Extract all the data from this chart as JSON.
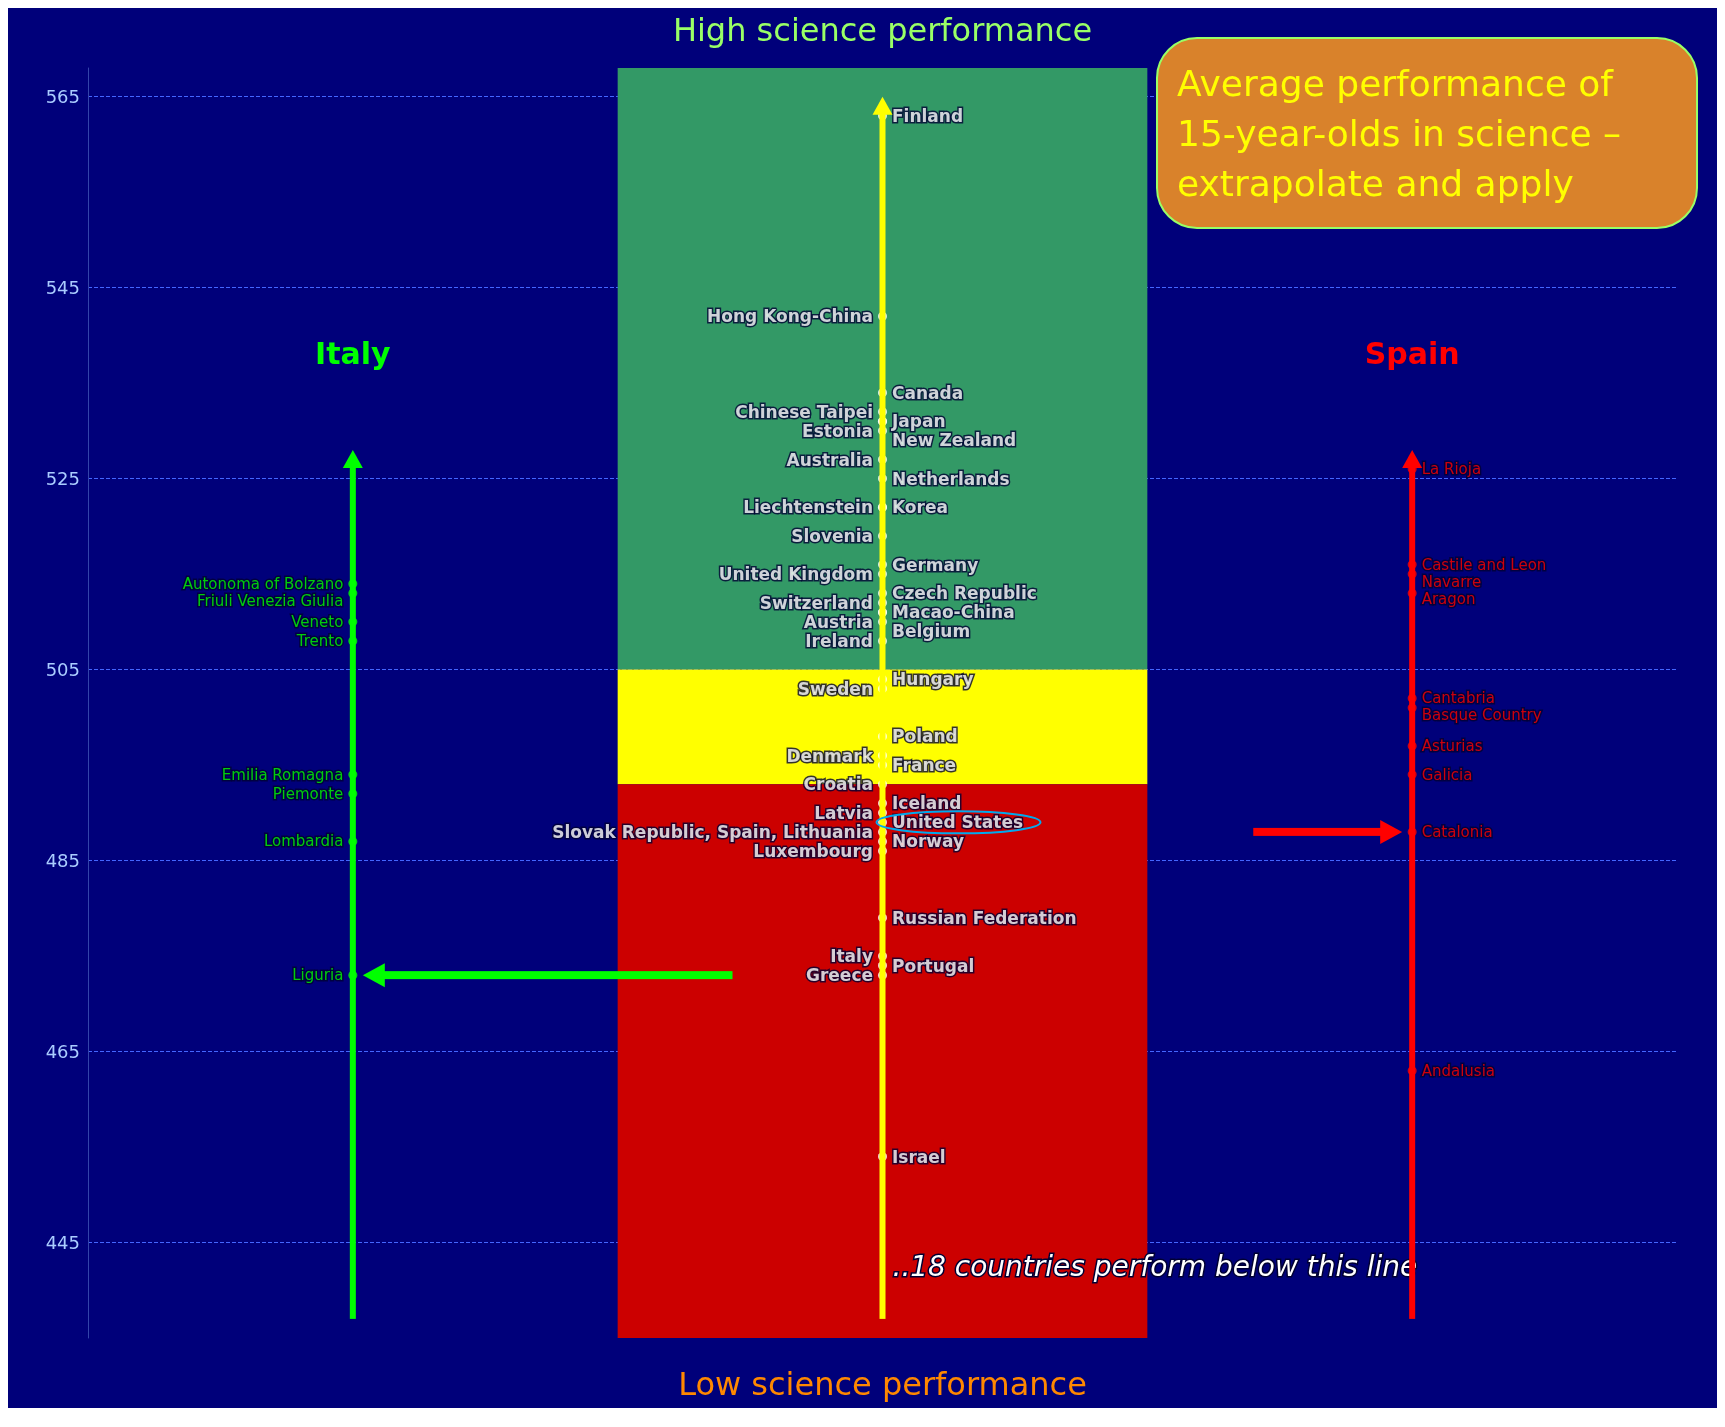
{
  "chart_data": {
    "type": "scatter",
    "title": "Average performance of 15-year-olds in science – extrapolate and apply",
    "categories": [
      "Italy",
      null,
      "Spain"
    ],
    "series": [
      {
        "name": null,
        "color": "#00ff00",
        "x": [
          "Italy",
          "Italy",
          "Italy",
          "Italy",
          "Italy",
          "Italy",
          "Italy",
          "Italy"
        ],
        "values": [
          514,
          513,
          510,
          508,
          494,
          492,
          487,
          473
        ],
        "value_labels": [
          "Autonoma of Bolzano",
          "Friuli Venezia Giulia",
          "Veneto",
          "Trento",
          "Emilia Romagna",
          "Piemonte",
          "Lombardia",
          "Liguria"
        ]
      },
      {
        "name": null,
        "color": "#ffffff",
        "x": [
          null,
          null,
          null,
          null,
          null,
          null,
          null,
          null,
          null,
          null,
          null,
          null,
          null,
          null,
          null,
          null,
          null,
          null,
          null,
          null,
          null,
          null,
          null,
          null,
          null,
          null,
          null,
          null,
          null,
          null,
          null,
          null,
          null,
          null,
          null,
          null,
          null
        ],
        "values": [
          563,
          542,
          534,
          532,
          531,
          531,
          530,
          527,
          525,
          522,
          522,
          519,
          516,
          515,
          513,
          512,
          511,
          511,
          510,
          508,
          504,
          503,
          498,
          496,
          495,
          493,
          491,
          490,
          489,
          488,
          487,
          486,
          479,
          475,
          474,
          473,
          454
        ],
        "value_labels": [
          "Finland",
          "Hong Kong-China",
          "Canada",
          "Chinese Taipei",
          "Japan",
          "Estonia",
          "New Zealand",
          "Australia",
          "Netherlands",
          "Liechtenstein",
          "Korea",
          "Slovenia",
          "Germany",
          "United Kingdom",
          "Czech Republic",
          "Switzerland",
          "Macao-China",
          "Austria",
          "Belgium",
          "Ireland",
          "Hungary",
          "Sweden",
          "Poland",
          "Denmark",
          "France",
          "Croatia",
          "Iceland",
          "Latvia",
          "United States",
          "Slovak Republic, Spain, Lithuania",
          "Norway",
          "Luxembourg",
          "Russian Federation",
          "Italy",
          "Portugal",
          "Greece",
          "Israel"
        ]
      },
      {
        "name": null,
        "color": "#ff0000",
        "x": [
          "Spain",
          "Spain",
          "Spain",
          "Spain",
          "Spain",
          "Spain",
          "Spain",
          "Spain",
          "Spain",
          "Spain"
        ],
        "values": [
          526,
          516,
          515,
          513,
          502,
          501,
          497,
          494,
          488,
          463
        ],
        "value_labels": [
          "La Rioja",
          "Castile and Leon",
          "Navarre",
          "Aragon",
          "Cantabria",
          "Basque Country",
          "Asturias",
          "Galicia",
          "Catalonia",
          "Andalusia"
        ]
      }
    ],
    "ylim": [
      435,
      568
    ],
    "yticks": [
      445,
      465,
      485,
      505,
      525,
      545,
      565
    ],
    "grid": "y",
    "marker": "circle",
    "bands": [
      {
        "axis": "y",
        "from": 505,
        "to": 568,
        "color": "#339966"
      },
      {
        "axis": "y",
        "from": 493,
        "to": 505,
        "color": "#ffff00"
      },
      {
        "axis": "y",
        "from": 435,
        "to": 493,
        "color": "#cc0000"
      }
    ],
    "annotations": [
      "High science performance",
      "Low science performance",
      "..18 countries perform below this line"
    ]
  }
}
